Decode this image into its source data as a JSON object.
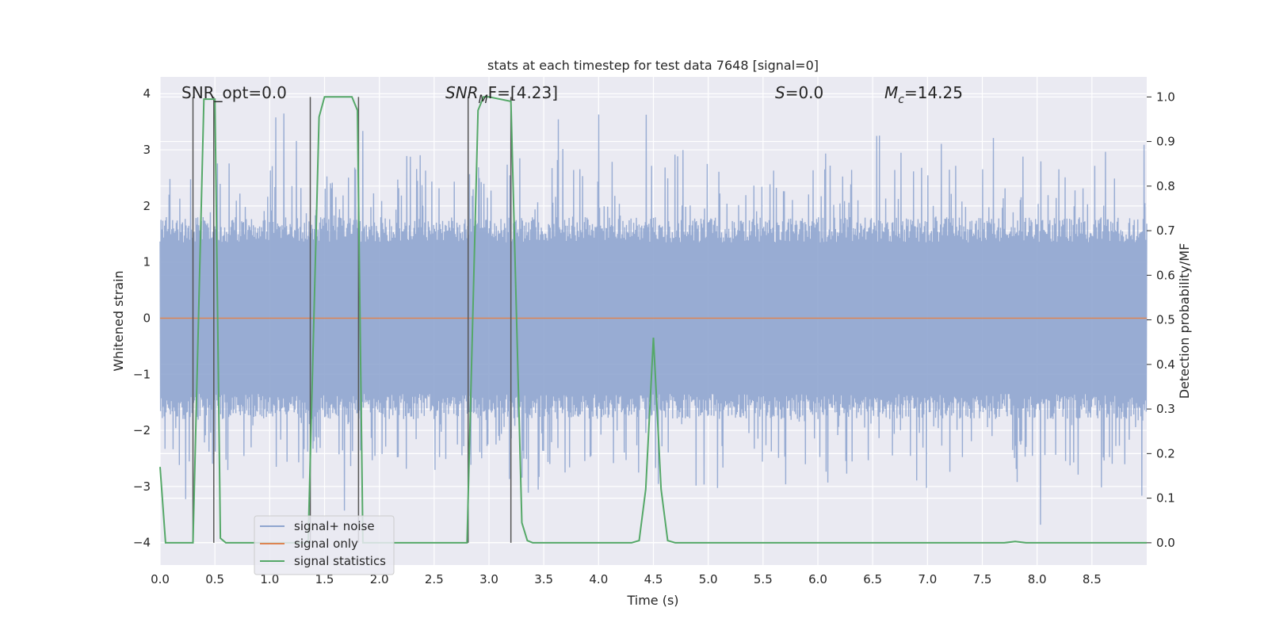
{
  "chart_data": {
    "type": "line",
    "title": "stats at each timestep for test data 7648 [signal=0]",
    "xlabel": "Time (s)",
    "ylabel_left": "Whitened strain",
    "ylabel_right": "Detection probability/MF",
    "xlim": [
      0.0,
      9.0
    ],
    "ylim_left": [
      -4.4,
      4.3
    ],
    "ylim_right": [
      -0.05,
      1.045
    ],
    "x_ticks": [
      "0.0",
      "0.5",
      "1.0",
      "1.5",
      "2.0",
      "2.5",
      "3.0",
      "3.5",
      "4.0",
      "4.5",
      "5.0",
      "5.5",
      "6.0",
      "6.5",
      "7.0",
      "7.5",
      "8.0",
      "8.5"
    ],
    "y_ticks_left": [
      "4",
      "3",
      "2",
      "1",
      "0",
      "−1",
      "−2",
      "−3",
      "−4"
    ],
    "y_ticks_right": [
      "1.0",
      "0.9",
      "0.8",
      "0.7",
      "0.6",
      "0.5",
      "0.4",
      "0.3",
      "0.2",
      "0.1",
      "0.0"
    ],
    "grid": true,
    "legend_position": "lower-left",
    "annotations": {
      "snr_opt": "SNR_opt=0.0",
      "snr_mf_prefix": "SNR",
      "snr_mf_sub": "M",
      "snr_mf_suffix": "F=[4.23]",
      "s_prefix": "S",
      "s_suffix": "=0.0",
      "mc_prefix": "M",
      "mc_sub": "c",
      "mc_suffix": "=14.25"
    },
    "series": [
      {
        "name": "signal+ noise",
        "color": "#8fa5cf",
        "style": "whitened strain noise, roughly ±1.6 envelope with spikes to about ±3.9"
      },
      {
        "name": "signal only",
        "color": "#dd8452",
        "values_constant": 0.0
      },
      {
        "name": "signal statistics",
        "color": "#55a868",
        "x": [
          0.0,
          0.05,
          0.1,
          0.2,
          0.3,
          0.4,
          0.5,
          0.55,
          0.6,
          0.65,
          0.7,
          1.2,
          1.35,
          1.45,
          1.5,
          1.75,
          1.8,
          1.85,
          1.9,
          2.0,
          2.8,
          2.9,
          2.95,
          3.0,
          3.2,
          3.3,
          3.35,
          3.4,
          4.3,
          4.37,
          4.43,
          4.5,
          4.57,
          4.63,
          4.7,
          7.7,
          7.8,
          7.9,
          9.0
        ],
        "values": [
          0.17,
          0.0,
          0.0,
          0.0,
          0.0,
          0.995,
          0.995,
          0.01,
          0.0,
          0.0,
          0.0,
          0.0,
          0.0,
          0.955,
          1.0,
          1.0,
          0.97,
          0.0,
          0.0,
          0.0,
          0.0,
          0.97,
          1.0,
          1.0,
          0.99,
          0.045,
          0.005,
          0.0,
          0.0,
          0.005,
          0.12,
          0.46,
          0.12,
          0.005,
          0.0,
          0.0,
          0.003,
          0.0,
          0.0
        ]
      }
    ],
    "vertical_markers_x": [
      0.3,
      0.49,
      1.37,
      1.81,
      2.81,
      3.2
    ]
  }
}
